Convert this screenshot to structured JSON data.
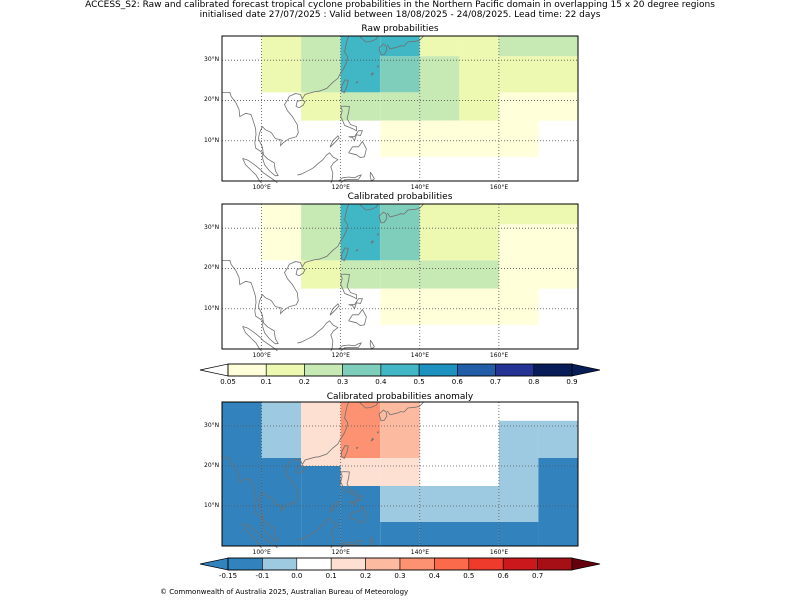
{
  "header": {
    "title_line1": "ACCESS_S2: Raw and calibrated forecast tropical cyclone probabilities in the Northern Pacific domain in overlapping 15 x 20 degree regions",
    "title_line2": "initialised date 27/07/2025 :  Valid between 18/08/2025 - 24/08/2025. Lead time: 22 days"
  },
  "map_axes": {
    "lon_range": [
      90,
      180
    ],
    "lat_range": [
      0,
      36
    ],
    "lon_ticks": [
      {
        "value": 100,
        "label": "100°E"
      },
      {
        "value": 120,
        "label": "120°E"
      },
      {
        "value": 140,
        "label": "140°E"
      },
      {
        "value": 160,
        "label": "160°E"
      }
    ],
    "lat_ticks": [
      {
        "value": 10,
        "label": "10°N"
      },
      {
        "value": 20,
        "label": "20°N"
      },
      {
        "value": 30,
        "label": "30°N"
      }
    ]
  },
  "panels": {
    "raw": {
      "title": "Raw probabilities",
      "cells": [
        {
          "lon": [
            100,
            110
          ],
          "lat": [
            22,
            36
          ],
          "level": 1
        },
        {
          "lon": [
            110,
            120
          ],
          "lat": [
            22,
            36
          ],
          "level": 2
        },
        {
          "lon": [
            110,
            120
          ],
          "lat": [
            15,
            22
          ],
          "level": 1
        },
        {
          "lon": [
            120,
            130
          ],
          "lat": [
            22,
            36
          ],
          "level": 4
        },
        {
          "lon": [
            120,
            130
          ],
          "lat": [
            15,
            22
          ],
          "level": 2
        },
        {
          "lon": [
            130,
            140
          ],
          "lat": [
            22,
            31
          ],
          "level": 3
        },
        {
          "lon": [
            130,
            140
          ],
          "lat": [
            31,
            36
          ],
          "level": 4
        },
        {
          "lon": [
            130,
            140
          ],
          "lat": [
            15,
            22
          ],
          "level": 2
        },
        {
          "lon": [
            130,
            140
          ],
          "lat": [
            6,
            15
          ],
          "level": 0
        },
        {
          "lon": [
            140,
            150
          ],
          "lat": [
            15,
            31
          ],
          "level": 2
        },
        {
          "lon": [
            140,
            150
          ],
          "lat": [
            31,
            36
          ],
          "level": 1
        },
        {
          "lon": [
            140,
            160
          ],
          "lat": [
            6,
            15
          ],
          "level": 0
        },
        {
          "lon": [
            150,
            160
          ],
          "lat": [
            15,
            36
          ],
          "level": 1
        },
        {
          "lon": [
            160,
            170
          ],
          "lat": [
            6,
            22
          ],
          "level": 0
        },
        {
          "lon": [
            160,
            180
          ],
          "lat": [
            22,
            31
          ],
          "level": 1
        },
        {
          "lon": [
            160,
            180
          ],
          "lat": [
            31,
            36
          ],
          "level": 2
        },
        {
          "lon": [
            170,
            180
          ],
          "lat": [
            15,
            22
          ],
          "level": 0
        }
      ]
    },
    "calibrated": {
      "title": "Calibrated probabilities",
      "cells": [
        {
          "lon": [
            100,
            110
          ],
          "lat": [
            22,
            36
          ],
          "level": 0
        },
        {
          "lon": [
            110,
            120
          ],
          "lat": [
            22,
            36
          ],
          "level": 2
        },
        {
          "lon": [
            110,
            120
          ],
          "lat": [
            15,
            22
          ],
          "level": 1
        },
        {
          "lon": [
            120,
            130
          ],
          "lat": [
            22,
            36
          ],
          "level": 4
        },
        {
          "lon": [
            120,
            130
          ],
          "lat": [
            15,
            22
          ],
          "level": 2
        },
        {
          "lon": [
            130,
            140
          ],
          "lat": [
            22,
            36
          ],
          "level": 3
        },
        {
          "lon": [
            130,
            140
          ],
          "lat": [
            15,
            22
          ],
          "level": 2
        },
        {
          "lon": [
            130,
            140
          ],
          "lat": [
            6,
            15
          ],
          "level": 0
        },
        {
          "lon": [
            140,
            160
          ],
          "lat": [
            15,
            22
          ],
          "level": 2
        },
        {
          "lon": [
            140,
            160
          ],
          "lat": [
            22,
            36
          ],
          "level": 1
        },
        {
          "lon": [
            140,
            160
          ],
          "lat": [
            6,
            15
          ],
          "level": 0
        },
        {
          "lon": [
            160,
            170
          ],
          "lat": [
            6,
            22
          ],
          "level": 0
        },
        {
          "lon": [
            160,
            180
          ],
          "lat": [
            22,
            31
          ],
          "level": 0
        },
        {
          "lon": [
            160,
            180
          ],
          "lat": [
            31,
            36
          ],
          "level": 1
        },
        {
          "lon": [
            170,
            180
          ],
          "lat": [
            15,
            22
          ],
          "level": 0
        }
      ]
    },
    "anomaly": {
      "title": "Calibrated probabilities anomaly",
      "cells": [
        {
          "lon": [
            90,
            100
          ],
          "lat": [
            0,
            36
          ],
          "level": 0
        },
        {
          "lon": [
            100,
            110
          ],
          "lat": [
            0,
            22
          ],
          "level": 0
        },
        {
          "lon": [
            100,
            110
          ],
          "lat": [
            22,
            36
          ],
          "level": 1
        },
        {
          "lon": [
            110,
            120
          ],
          "lat": [
            0,
            20
          ],
          "level": 0
        },
        {
          "lon": [
            110,
            120
          ],
          "lat": [
            20,
            36
          ],
          "level": 3
        },
        {
          "lon": [
            120,
            130
          ],
          "lat": [
            0,
            15
          ],
          "level": 0
        },
        {
          "lon": [
            120,
            130
          ],
          "lat": [
            15,
            22
          ],
          "level": 3
        },
        {
          "lon": [
            120,
            130
          ],
          "lat": [
            22,
            36
          ],
          "level": 5
        },
        {
          "lon": [
            130,
            140
          ],
          "lat": [
            0,
            6
          ],
          "level": 0
        },
        {
          "lon": [
            130,
            140
          ],
          "lat": [
            6,
            15
          ],
          "level": 1
        },
        {
          "lon": [
            130,
            140
          ],
          "lat": [
            15,
            22
          ],
          "level": 3
        },
        {
          "lon": [
            130,
            140
          ],
          "lat": [
            22,
            36
          ],
          "level": 4
        },
        {
          "lon": [
            140,
            160
          ],
          "lat": [
            0,
            6
          ],
          "level": 0
        },
        {
          "lon": [
            140,
            160
          ],
          "lat": [
            6,
            15
          ],
          "level": 1
        },
        {
          "lon": [
            160,
            170
          ],
          "lat": [
            0,
            6
          ],
          "level": 0
        },
        {
          "lon": [
            160,
            170
          ],
          "lat": [
            6,
            31
          ],
          "level": 1
        },
        {
          "lon": [
            170,
            180
          ],
          "lat": [
            0,
            22
          ],
          "level": 0
        },
        {
          "lon": [
            170,
            180
          ],
          "lat": [
            22,
            31
          ],
          "level": 1
        },
        {
          "lon": [
            160,
            180
          ],
          "lat": [
            31,
            31.3
          ],
          "level": 1
        }
      ]
    }
  },
  "probability_colorbar": {
    "under_color": "#ffffff",
    "over_color": "#081d58",
    "colors": [
      "#ffffd9",
      "#edf8b1",
      "#c7e9b4",
      "#7fcdbb",
      "#41b6c4",
      "#1d91c0",
      "#225ea8",
      "#253494",
      "#081d58"
    ],
    "labels": [
      "0.05",
      "0.1",
      "0.2",
      "0.3",
      "0.4",
      "0.5",
      "0.6",
      "0.7",
      "0.8",
      "0.9"
    ]
  },
  "anomaly_colorbar": {
    "under_color": "#3182bd",
    "over_color": "#67000d",
    "colors": [
      "#3182bd",
      "#9ecae1",
      "#ffffff",
      "#fee0d2",
      "#fcbba1",
      "#fc9272",
      "#fb6a4a",
      "#ef3b2c",
      "#cb181d",
      "#a50f15"
    ],
    "labels": [
      "-0.15",
      "-0.1",
      "0.0",
      "0.1",
      "0.2",
      "0.3",
      "0.4",
      "0.5",
      "0.6",
      "0.7"
    ]
  },
  "footer": {
    "copyright": "© Commonwealth of Australia 2025, Australian Bureau of Meteorology"
  }
}
